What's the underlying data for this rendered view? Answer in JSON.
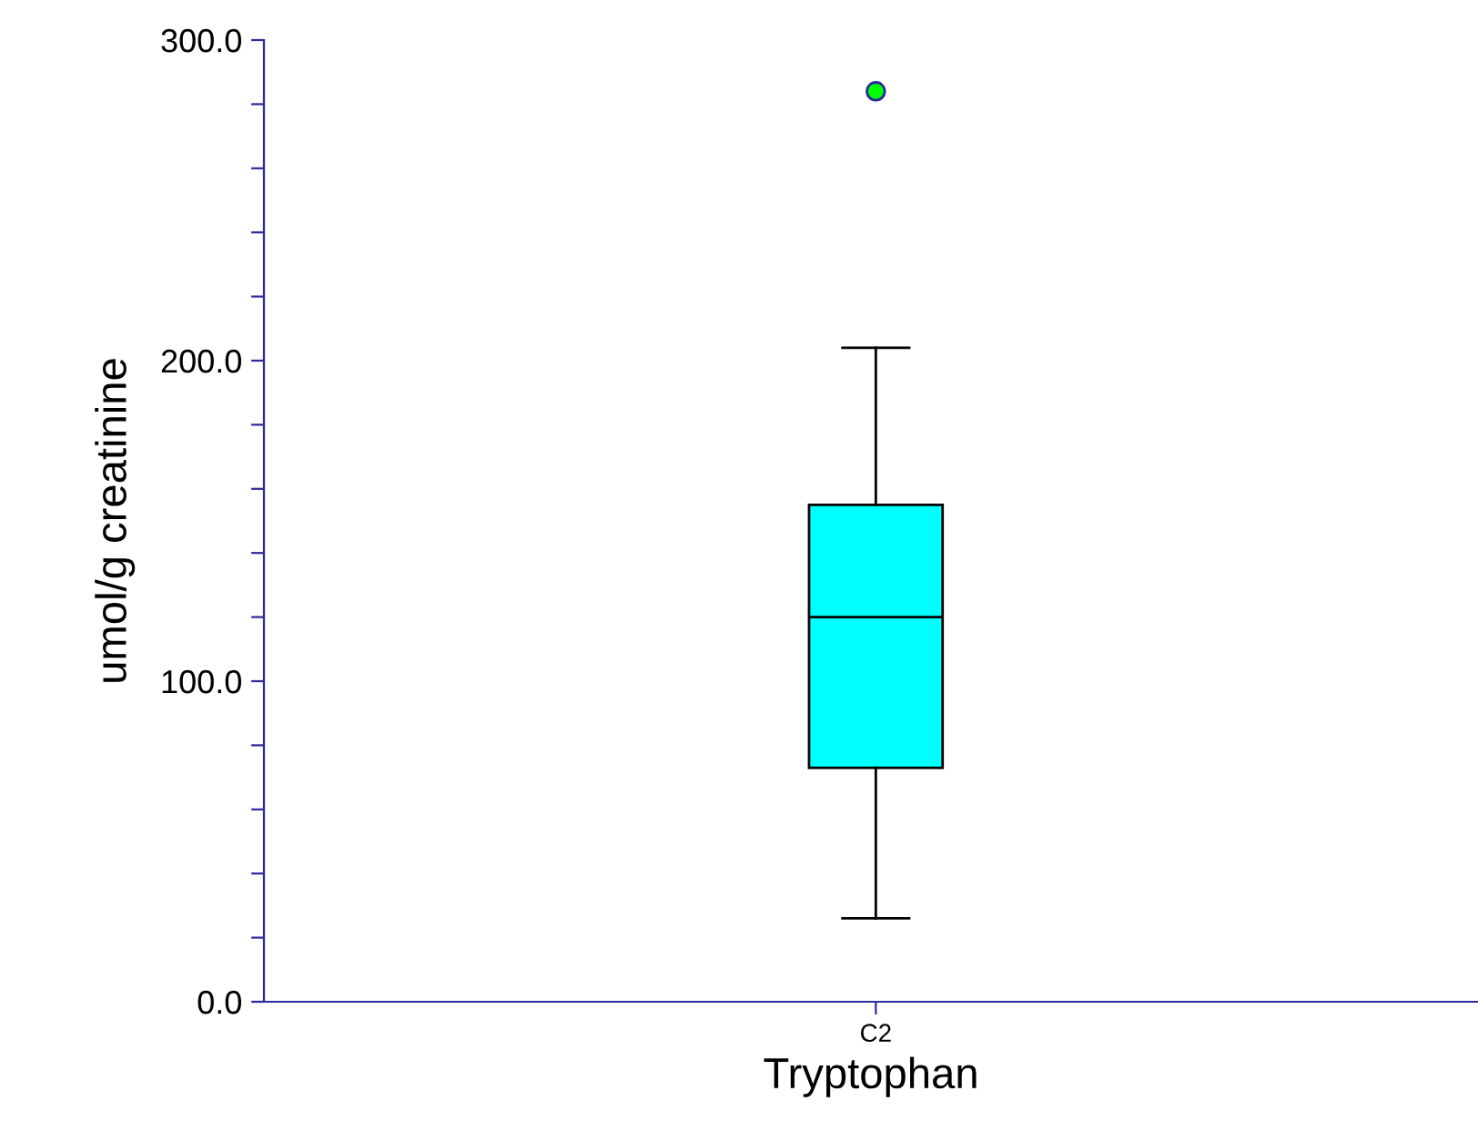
{
  "chart_data": {
    "type": "box",
    "xlabel": "Tryptophan",
    "ylabel": "umol/g creatinine",
    "categories": [
      "C2"
    ],
    "series": [
      {
        "color": "#00ffff",
        "boxes": [
          {
            "low": 26,
            "q1": 73,
            "median": 120,
            "q3": 155,
            "high": 204
          }
        ]
      },
      {
        "type": "scatter",
        "color": "#00ff00",
        "x": [
          "C2"
        ],
        "values": [
          284
        ]
      }
    ],
    "marker": "circle",
    "ylim": [
      0,
      300
    ],
    "yticks": [
      {
        "value": 0,
        "label": "0.0"
      },
      {
        "value": 20,
        "label": null
      },
      {
        "value": 40,
        "label": null
      },
      {
        "value": 60,
        "label": null
      },
      {
        "value": 80,
        "label": null
      },
      {
        "value": 100,
        "label": "100.0"
      },
      {
        "value": 120,
        "label": null
      },
      {
        "value": 140,
        "label": null
      },
      {
        "value": 160,
        "label": null
      },
      {
        "value": 180,
        "label": null
      },
      {
        "value": 200,
        "label": "200.0"
      },
      {
        "value": 220,
        "label": null
      },
      {
        "value": 240,
        "label": null
      },
      {
        "value": 260,
        "label": null
      },
      {
        "value": 280,
        "label": null
      },
      {
        "value": 300,
        "label": "300.0"
      }
    ],
    "grid": false
  }
}
